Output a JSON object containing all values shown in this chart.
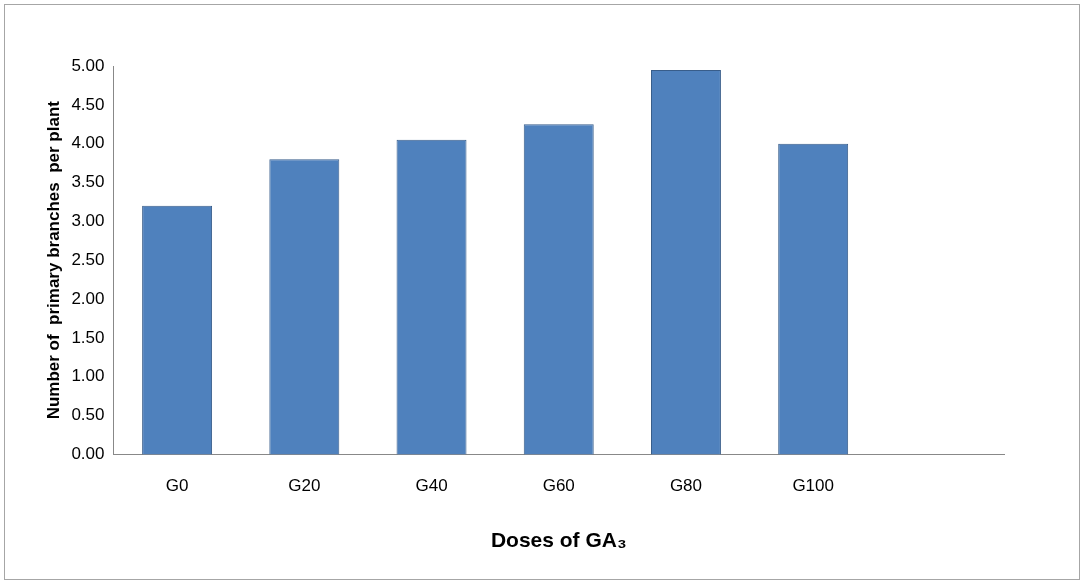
{
  "chart_data": {
    "type": "bar",
    "xlabel": "Doses of GA₃",
    "ylabel": "Number of  primary branches  per plant",
    "categories": [
      "G0",
      "G20",
      "G40",
      "G60",
      "G80",
      "G100",
      null
    ],
    "values": [
      3.2,
      3.8,
      4.05,
      4.25,
      4.95,
      4.0,
      null
    ],
    "color": "#4f81bd",
    "ylim": [
      0,
      5
    ],
    "yticks": [
      {
        "value": 0,
        "label": "0.00"
      },
      {
        "value": 0.5,
        "label": "0.50"
      },
      {
        "value": 1,
        "label": "1.00"
      },
      {
        "value": 1.5,
        "label": "1.50"
      },
      {
        "value": 2,
        "label": "2.00"
      },
      {
        "value": 2.5,
        "label": "2.50"
      },
      {
        "value": 3,
        "label": "3.00"
      },
      {
        "value": 3.5,
        "label": "3.50"
      },
      {
        "value": 4,
        "label": "4.00"
      },
      {
        "value": 4.5,
        "label": "4.50"
      },
      {
        "value": 5,
        "label": "5.00"
      }
    ],
    "grid": false,
    "legend": false
  }
}
